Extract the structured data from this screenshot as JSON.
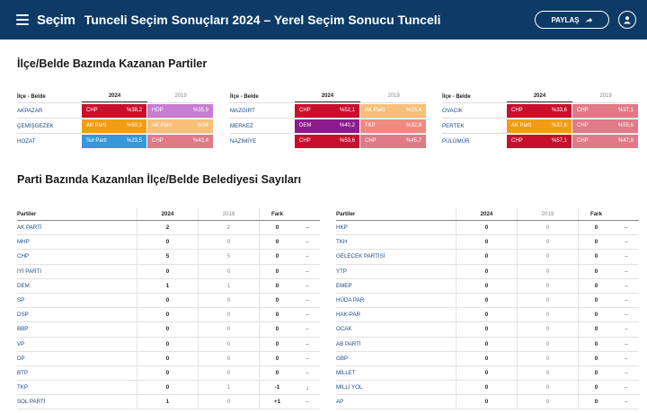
{
  "header": {
    "brand": "Seçim",
    "title": "Tunceli Seçim Sonuçları 2024 – Yerel Seçim Sonucu Tunceli",
    "share_label": "PAYLAŞ"
  },
  "winners_section": {
    "title": "İlçe/Belde Bazında Kazanan Partiler",
    "col_district": "İlçe - Belde",
    "col_2024": "2024",
    "col_2019": "2019",
    "blocks": [
      [
        {
          "district": "AKPAZAR",
          "p24": "CHP",
          "v24": "%38,2",
          "c24": "#c8102e",
          "p19": "HDP",
          "v19": "%35,9",
          "c19": "#c77dd1"
        },
        {
          "district": "ÇEMİŞGEZEK",
          "p24": "AK Parti",
          "v24": "%50,3",
          "c24": "#f39c12",
          "p19": "AK Parti",
          "v19": "%54",
          "c19": "#f7c07a"
        },
        {
          "district": "HOZAT",
          "p24": "Sol Parti",
          "v24": "%23,5",
          "c24": "#3498db",
          "p19": "CHP",
          "v19": "%42,4",
          "c19": "#e07a87"
        }
      ],
      [
        {
          "district": "MAZGİRT",
          "p24": "CHP",
          "v24": "%52,1",
          "c24": "#c8102e",
          "p19": "AK Parti",
          "v19": "%35,4",
          "c19": "#f7c07a"
        },
        {
          "district": "MERKEZ",
          "p24": "DEM",
          "v24": "%40,2",
          "c24": "#8e1a8e",
          "p19": "TKP",
          "v19": "%32,8",
          "c19": "#f08a80"
        },
        {
          "district": "NAZIMİYE",
          "p24": "CHP",
          "v24": "%53,6",
          "c24": "#c8102e",
          "p19": "CHP",
          "v19": "%45,7",
          "c19": "#e07a87"
        }
      ],
      [
        {
          "district": "OVACIK",
          "p24": "CHP",
          "v24": "%33,6",
          "c24": "#c8102e",
          "p19": "CHP",
          "v19": "%37,1",
          "c19": "#e07a87"
        },
        {
          "district": "PERTEK",
          "p24": "AK Parti",
          "v24": "%37,6",
          "c24": "#f39c12",
          "p19": "CHP",
          "v19": "%55,6",
          "c19": "#e07a87"
        },
        {
          "district": "PÜLÜMÜR",
          "p24": "CHP",
          "v24": "%57,1",
          "c24": "#c8102e",
          "p19": "CHP",
          "v19": "%47,9",
          "c19": "#e07a87"
        }
      ]
    ]
  },
  "party_section": {
    "title": "Parti Bazında Kazanılan İlçe/Belde Belediyesi Sayıları",
    "col_party": "Partiler",
    "col_2024": "2024",
    "col_2019": "2019",
    "col_diff": "Fark",
    "left": [
      {
        "name": "AK PARTİ",
        "a": "2",
        "b": "2",
        "f": "0",
        "i": "–"
      },
      {
        "name": "MHP",
        "a": "0",
        "b": "0",
        "f": "0",
        "i": "–"
      },
      {
        "name": "CHP",
        "a": "5",
        "b": "5",
        "f": "0",
        "i": "–"
      },
      {
        "name": "İYİ PARTİ",
        "a": "0",
        "b": "0",
        "f": "0",
        "i": "–"
      },
      {
        "name": "DEM",
        "a": "1",
        "b": "1",
        "f": "0",
        "i": "–"
      },
      {
        "name": "SP",
        "a": "0",
        "b": "0",
        "f": "0",
        "i": "–"
      },
      {
        "name": "DSP",
        "a": "0",
        "b": "0",
        "f": "0",
        "i": "–"
      },
      {
        "name": "BBP",
        "a": "0",
        "b": "0",
        "f": "0",
        "i": "–"
      },
      {
        "name": "VP",
        "a": "0",
        "b": "0",
        "f": "0",
        "i": "–"
      },
      {
        "name": "DP",
        "a": "0",
        "b": "0",
        "f": "0",
        "i": "–"
      },
      {
        "name": "BTP",
        "a": "0",
        "b": "0",
        "f": "0",
        "i": "–"
      },
      {
        "name": "TKP",
        "a": "0",
        "b": "1",
        "f": "-1",
        "i": "↓"
      },
      {
        "name": "SOL PARTİ",
        "a": "1",
        "b": "0",
        "f": "+1",
        "i": "–"
      }
    ],
    "right": [
      {
        "name": "HKP",
        "a": "0",
        "b": "0",
        "f": "0",
        "i": "–"
      },
      {
        "name": "TKH",
        "a": "0",
        "b": "0",
        "f": "0",
        "i": "–"
      },
      {
        "name": "GELECEK PARTİSİ",
        "a": "0",
        "b": "0",
        "f": "0",
        "i": "–"
      },
      {
        "name": "YTP",
        "a": "0",
        "b": "0",
        "f": "0",
        "i": "–"
      },
      {
        "name": "EMEP",
        "a": "0",
        "b": "0",
        "f": "0",
        "i": "–"
      },
      {
        "name": "HÜDA PAR",
        "a": "0",
        "b": "0",
        "f": "0",
        "i": "–"
      },
      {
        "name": "HAK-PAR",
        "a": "0",
        "b": "0",
        "f": "0",
        "i": "–"
      },
      {
        "name": "OCAK",
        "a": "0",
        "b": "0",
        "f": "0",
        "i": "–"
      },
      {
        "name": "AB PARTİ",
        "a": "0",
        "b": "0",
        "f": "0",
        "i": "–"
      },
      {
        "name": "GBP",
        "a": "0",
        "b": "0",
        "f": "0",
        "i": "–"
      },
      {
        "name": "MİLLET",
        "a": "0",
        "b": "0",
        "f": "0",
        "i": "–"
      },
      {
        "name": "MİLLİ YOL",
        "a": "0",
        "b": "0",
        "f": "0",
        "i": "–"
      },
      {
        "name": "AP",
        "a": "0",
        "b": "0",
        "f": "0",
        "i": "–"
      }
    ]
  },
  "colors": {
    "header_bg": "#0d3b66"
  }
}
